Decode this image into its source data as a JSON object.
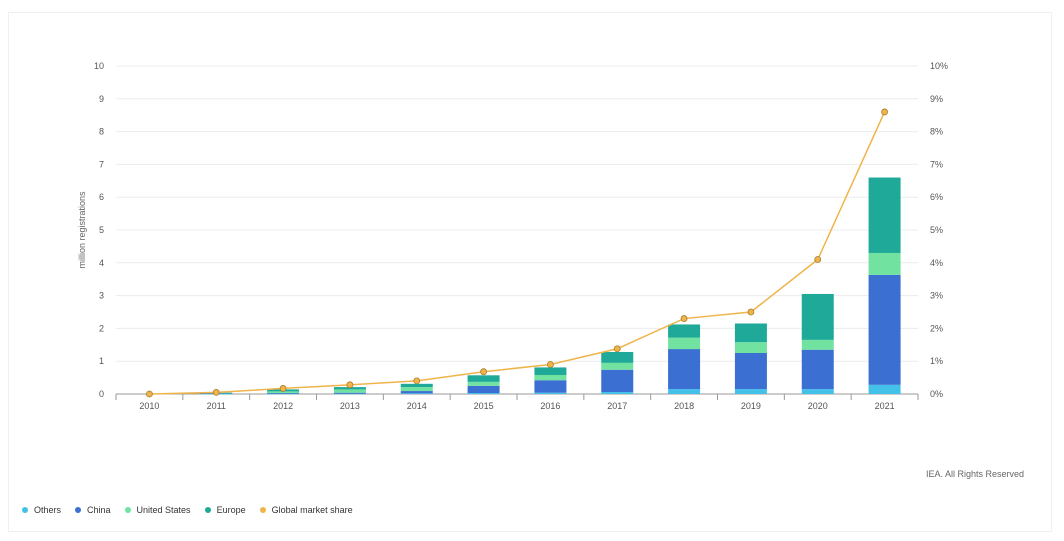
{
  "chart_data": {
    "type": "bar",
    "stacked": true,
    "categories": [
      "2010",
      "2011",
      "2012",
      "2013",
      "2014",
      "2015",
      "2016",
      "2017",
      "2018",
      "2019",
      "2020",
      "2021"
    ],
    "series": [
      {
        "name": "Others",
        "color": "#44c1e8",
        "values": [
          0,
          0.005,
          0.01,
          0.01,
          0.02,
          0.03,
          0.04,
          0.06,
          0.15,
          0.15,
          0.15,
          0.28
        ]
      },
      {
        "name": "China",
        "color": "#3b6fd1",
        "values": [
          0,
          0.01,
          0.02,
          0.03,
          0.07,
          0.22,
          0.38,
          0.68,
          1.22,
          1.1,
          1.2,
          3.35
        ]
      },
      {
        "name": "United States",
        "color": "#72e2a1",
        "values": [
          0,
          0.015,
          0.05,
          0.1,
          0.12,
          0.12,
          0.16,
          0.21,
          0.35,
          0.33,
          0.3,
          0.67
        ]
      },
      {
        "name": "Europe",
        "color": "#1ea999",
        "values": [
          0,
          0.01,
          0.06,
          0.07,
          0.1,
          0.2,
          0.23,
          0.33,
          0.4,
          0.57,
          1.4,
          2.3
        ]
      }
    ],
    "line_series": {
      "name": "Global market share",
      "color": "#f0b44a",
      "axis": "right",
      "values": [
        0,
        0.05,
        0.17,
        0.28,
        0.4,
        0.68,
        0.9,
        1.38,
        2.3,
        2.5,
        4.1,
        8.6
      ]
    },
    "ylim": [
      0,
      10
    ],
    "y2lim": [
      0,
      10
    ],
    "yticks": [
      "0",
      "1",
      "2",
      "3",
      "4",
      "5",
      "6",
      "7",
      "8",
      "9",
      "10"
    ],
    "y2ticks": [
      "0%",
      "1%",
      "2%",
      "3%",
      "4%",
      "5%",
      "6%",
      "7%",
      "8%",
      "9%",
      "10%"
    ],
    "ylabel": "million registrations",
    "grid": true,
    "legend_position": "bottom-left"
  },
  "legend": [
    {
      "label": "Others",
      "color": "#44c1e8"
    },
    {
      "label": "China",
      "color": "#3b6fd1"
    },
    {
      "label": "United States",
      "color": "#72e2a1"
    },
    {
      "label": "Europe",
      "color": "#1ea999"
    },
    {
      "label": "Global market share",
      "color": "#f0b44a"
    }
  ],
  "credit": "IEA. All Rights Reserved"
}
